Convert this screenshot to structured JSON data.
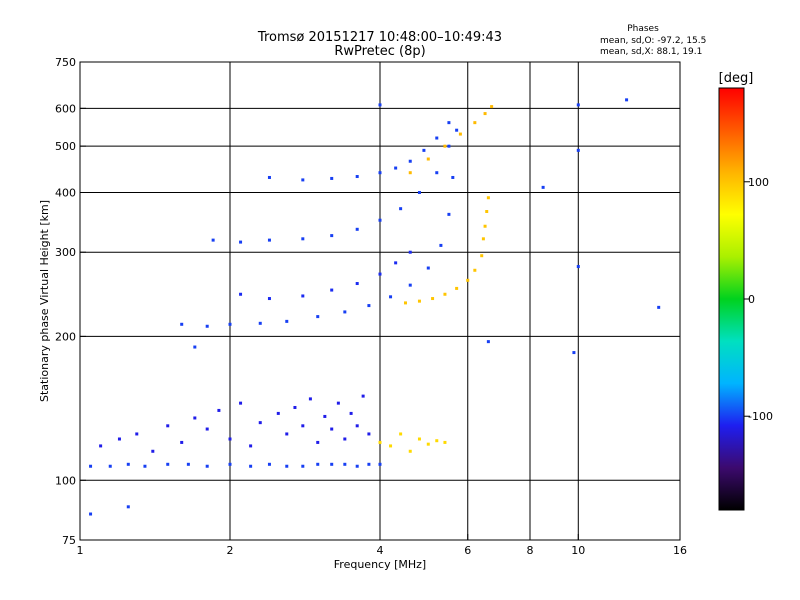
{
  "chart_data": {
    "type": "scatter",
    "title": "Tromsø 20151217 10:48:00–10:49:43",
    "subtitle": "RwPretec (8p)",
    "xlabel": "Frequency [MHz]",
    "ylabel": "Stationary phase Virtual Height [km]",
    "x_scale": "log",
    "y_scale": "log",
    "xlim": [
      1,
      16
    ],
    "ylim": [
      75,
      750
    ],
    "x_ticks": [
      1,
      2,
      4,
      6,
      8,
      10,
      16
    ],
    "y_ticks": [
      75,
      100,
      200,
      300,
      400,
      500,
      600,
      750
    ],
    "x_grid": [
      1,
      2,
      4,
      6,
      8,
      10,
      16
    ],
    "y_grid": [
      100,
      200,
      300,
      400,
      500,
      600
    ],
    "grid": true,
    "stats": {
      "heading": "Phases",
      "line1": "mean, sd,O: -97.2, 15.5",
      "line2": "mean, sd,X:  88.1, 19.1"
    },
    "colorbar": {
      "label": "[deg]",
      "range": [
        -180,
        180
      ],
      "ticks": [
        100,
        0,
        -100
      ],
      "colors": [
        "#000000",
        "#3c0a6e",
        "#1e1ef0",
        "#00b4ff",
        "#00e0c0",
        "#00d21e",
        "#aaf000",
        "#ffff00",
        "#ffb400",
        "#ff5a00",
        "#ff0000"
      ]
    },
    "series": [
      {
        "trace": "o-low-baseline",
        "phase_deg": -100,
        "x": [
          1.05,
          1.15,
          1.25,
          1.35,
          1.5,
          1.65,
          1.8,
          2.0,
          2.2,
          2.4,
          2.6,
          2.8,
          3.0,
          3.2,
          3.4,
          3.6,
          3.8,
          4.0
        ],
        "y": [
          107,
          107,
          108,
          107,
          108,
          108,
          107,
          108,
          107,
          108,
          107,
          107,
          108,
          108,
          108,
          107,
          108,
          108
        ]
      },
      {
        "trace": "o-low-scatter",
        "phase_deg": -110,
        "x": [
          1.1,
          1.2,
          1.3,
          1.4,
          1.5,
          1.6,
          1.7,
          1.8,
          1.9,
          2.0,
          2.1,
          2.2,
          2.3,
          2.5,
          2.6,
          2.7,
          2.8,
          2.9,
          3.0,
          3.1,
          3.2,
          3.3,
          3.4,
          3.5,
          3.6,
          3.7,
          3.8
        ],
        "y": [
          118,
          122,
          125,
          115,
          130,
          120,
          135,
          128,
          140,
          122,
          145,
          118,
          132,
          138,
          125,
          142,
          130,
          148,
          120,
          136,
          128,
          145,
          122,
          138,
          130,
          150,
          125
        ]
      },
      {
        "trace": "x-low-cluster",
        "phase_deg": 90,
        "x": [
          4.0,
          4.2,
          4.4,
          4.6,
          4.8,
          5.0,
          5.2,
          5.4
        ],
        "y": [
          120,
          118,
          125,
          115,
          122,
          119,
          121,
          120
        ]
      },
      {
        "trace": "o-f-trace-1",
        "phase_deg": -100,
        "x": [
          1.6,
          1.8,
          2.0,
          2.3,
          2.6,
          3.0,
          3.4,
          3.8,
          4.2,
          4.6,
          5.0,
          5.3,
          5.5,
          5.6,
          5.7
        ],
        "y": [
          212,
          210,
          212,
          213,
          215,
          220,
          225,
          232,
          242,
          256,
          278,
          310,
          360,
          430,
          540
        ]
      },
      {
        "trace": "o-f-trace-2",
        "phase_deg": -105,
        "x": [
          2.1,
          2.4,
          2.8,
          3.2,
          3.6,
          4.0,
          4.3,
          4.6
        ],
        "y": [
          245,
          240,
          243,
          250,
          258,
          270,
          285,
          300
        ]
      },
      {
        "trace": "o-f-trace-3",
        "phase_deg": -100,
        "x": [
          1.85,
          2.1,
          2.4,
          2.8,
          3.2,
          3.6,
          4.0,
          4.4,
          4.8,
          5.2,
          5.5
        ],
        "y": [
          318,
          315,
          318,
          320,
          325,
          335,
          350,
          370,
          400,
          440,
          500
        ]
      },
      {
        "trace": "o-f-trace-4",
        "phase_deg": -100,
        "x": [
          2.4,
          2.8,
          3.2,
          3.6,
          4.0,
          4.3,
          4.6,
          4.9,
          5.2,
          5.5
        ],
        "y": [
          430,
          425,
          428,
          432,
          440,
          450,
          465,
          490,
          520,
          560
        ]
      },
      {
        "trace": "x-f-trace",
        "phase_deg": 100,
        "x": [
          4.5,
          4.8,
          5.1,
          5.4,
          5.7,
          6.0,
          6.2,
          6.4,
          6.45,
          6.5,
          6.55,
          6.6
        ],
        "y": [
          235,
          237,
          240,
          245,
          252,
          262,
          275,
          295,
          320,
          340,
          365,
          390
        ]
      },
      {
        "trace": "x-upper",
        "phase_deg": 105,
        "x": [
          4.6,
          5.0,
          5.4,
          5.8,
          6.2,
          6.5,
          6.7
        ],
        "y": [
          440,
          470,
          500,
          530,
          560,
          585,
          605
        ]
      },
      {
        "trace": "outliers",
        "phase_deg": -100,
        "x": [
          1.05,
          1.25,
          1.7,
          4.0,
          6.6,
          8.5,
          10.0,
          10.0,
          12.5,
          14.5,
          10.0,
          9.8
        ],
        "y": [
          85,
          88,
          190,
          610,
          195,
          410,
          610,
          490,
          625,
          230,
          280,
          185
        ]
      }
    ]
  }
}
